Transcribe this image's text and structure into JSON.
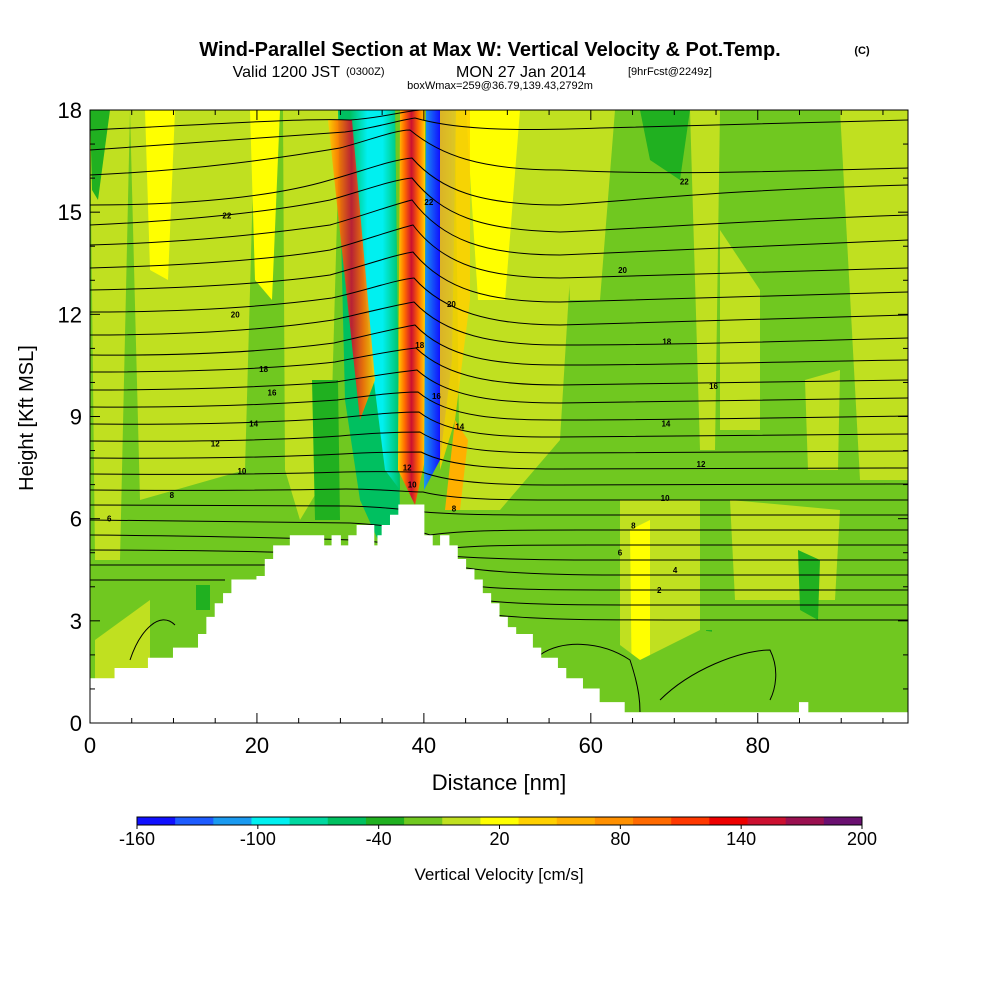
{
  "header": {
    "title": "Wind-Parallel Section at Max W: Vertical Velocity & Pot.Temp.",
    "copyright": "(C)",
    "valid_prefix": "Valid 1200 JST",
    "valid_utc": "(0300Z)",
    "valid_date": "MON 27 Jan 2014",
    "forecast": "[9hrFcst@2249z]",
    "box_info": "boxWmax=259@36.79,139.43,2792m"
  },
  "colorbar": {
    "label": "Vertical Velocity [cm/s]",
    "tick_labels": [
      "-160",
      "-100",
      "-40",
      "20",
      "80",
      "140",
      "200"
    ],
    "colors": [
      "#1010ff",
      "#1e5cff",
      "#1a9af0",
      "#00f0f0",
      "#00d8a0",
      "#00c060",
      "#20b020",
      "#70c820",
      "#c0e020",
      "#ffff00",
      "#ffd000",
      "#ffb000",
      "#ff9000",
      "#ff6a00",
      "#ff3800",
      "#ee0000",
      "#cc1030",
      "#9a1050",
      "#6a1070"
    ]
  },
  "chart_data": {
    "type": "heatmap",
    "title": "Wind-Parallel Section at Max W: Vertical Velocity & Pot.Temp.",
    "xlabel": "Distance [nm]",
    "ylabel": "Height [Kft MSL]",
    "xlim": [
      0,
      98
    ],
    "ylim": [
      0,
      18
    ],
    "x_ticks": [
      0,
      20,
      40,
      60,
      80
    ],
    "y_ticks": [
      0,
      3,
      6,
      9,
      12,
      15,
      18
    ],
    "colorbar_range": [
      -160,
      200
    ],
    "colorbar_step": 20,
    "colorbar_unit": "cm/s",
    "max_w": 259,
    "terrain_kft": [
      [
        0,
        1.3
      ],
      [
        1,
        1.3
      ],
      [
        3,
        1.6
      ],
      [
        6,
        1.6
      ],
      [
        7,
        1.9
      ],
      [
        10,
        2.2
      ],
      [
        13,
        2.6
      ],
      [
        14,
        3.1
      ],
      [
        15,
        3.5
      ],
      [
        16,
        3.8
      ],
      [
        17,
        4.2
      ],
      [
        20,
        4.3
      ],
      [
        21,
        4.8
      ],
      [
        22,
        5.2
      ],
      [
        23,
        5.2
      ],
      [
        24,
        5.5
      ],
      [
        27,
        5.5
      ],
      [
        28,
        5.2
      ],
      [
        29,
        5.5
      ],
      [
        30,
        5.2
      ],
      [
        31,
        5.5
      ],
      [
        32,
        5.8
      ],
      [
        33,
        5.8
      ],
      [
        34,
        5.2
      ],
      [
        34.5,
        5.5
      ],
      [
        35,
        5.8
      ],
      [
        36,
        6.1
      ],
      [
        37,
        6.4
      ],
      [
        39,
        6.4
      ],
      [
        40,
        5.5
      ],
      [
        41,
        5.2
      ],
      [
        42,
        5.5
      ],
      [
        43,
        5.2
      ],
      [
        44,
        4.8
      ],
      [
        45,
        4.5
      ],
      [
        46,
        4.2
      ],
      [
        47,
        3.8
      ],
      [
        48,
        3.5
      ],
      [
        49,
        3.1
      ],
      [
        50,
        2.8
      ],
      [
        51,
        2.6
      ],
      [
        53,
        2.2
      ],
      [
        54,
        1.9
      ],
      [
        56,
        1.6
      ],
      [
        57,
        1.3
      ],
      [
        59,
        1.0
      ],
      [
        61,
        0.6
      ],
      [
        64,
        0.3
      ],
      [
        71,
        0.3
      ],
      [
        77,
        0.3
      ],
      [
        80,
        0.3
      ],
      [
        85,
        0.6
      ],
      [
        86,
        0.3
      ],
      [
        98,
        0.3
      ]
    ],
    "contour_labels": [
      {
        "x": 2.3,
        "y": 6.0,
        "value": "6"
      },
      {
        "x": 9.8,
        "y": 6.7,
        "value": "8"
      },
      {
        "x": 18.2,
        "y": 7.4,
        "value": "10"
      },
      {
        "x": 15.0,
        "y": 8.2,
        "value": "12"
      },
      {
        "x": 19.6,
        "y": 8.8,
        "value": "14"
      },
      {
        "x": 21.8,
        "y": 9.7,
        "value": "16"
      },
      {
        "x": 20.8,
        "y": 10.4,
        "value": "18"
      },
      {
        "x": 17.4,
        "y": 12.0,
        "value": "20"
      },
      {
        "x": 16.4,
        "y": 14.9,
        "value": "22"
      },
      {
        "x": 40.6,
        "y": 15.3,
        "value": "22"
      },
      {
        "x": 43.3,
        "y": 12.3,
        "value": "20"
      },
      {
        "x": 39.5,
        "y": 11.1,
        "value": "18"
      },
      {
        "x": 41.5,
        "y": 9.6,
        "value": "16"
      },
      {
        "x": 44.3,
        "y": 8.7,
        "value": "14"
      },
      {
        "x": 38.0,
        "y": 7.5,
        "value": "12"
      },
      {
        "x": 38.6,
        "y": 7.0,
        "value": "10"
      },
      {
        "x": 43.6,
        "y": 6.3,
        "value": "8"
      },
      {
        "x": 71.2,
        "y": 15.9,
        "value": "22"
      },
      {
        "x": 63.8,
        "y": 13.3,
        "value": "20"
      },
      {
        "x": 69.1,
        "y": 11.2,
        "value": "18"
      },
      {
        "x": 74.7,
        "y": 9.9,
        "value": "16"
      },
      {
        "x": 69.0,
        "y": 8.8,
        "value": "14"
      },
      {
        "x": 73.2,
        "y": 7.6,
        "value": "12"
      },
      {
        "x": 68.9,
        "y": 6.6,
        "value": "10"
      },
      {
        "x": 65.1,
        "y": 5.8,
        "value": "8"
      },
      {
        "x": 63.5,
        "y": 5.0,
        "value": "6"
      },
      {
        "x": 70.1,
        "y": 4.5,
        "value": "4"
      },
      {
        "x": 68.2,
        "y": 3.9,
        "value": "2"
      }
    ]
  }
}
